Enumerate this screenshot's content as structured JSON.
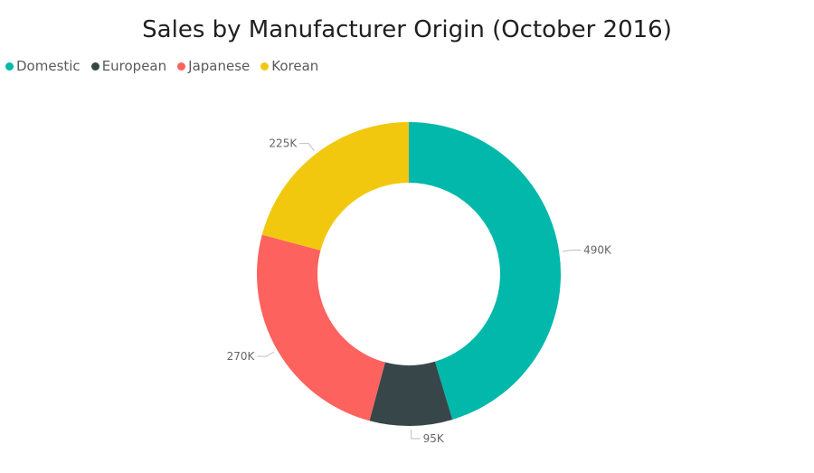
{
  "chart_data": {
    "type": "pie",
    "subtype": "donut",
    "title": "Sales by Manufacturer Origin (October 2016)",
    "legend_position": "top-left",
    "series": [
      {
        "name": "Domestic",
        "value": 490000,
        "label": "490K",
        "color": "#01b8aa"
      },
      {
        "name": "European",
        "value": 95000,
        "label": "95K",
        "color": "#374649"
      },
      {
        "name": "Japanese",
        "value": 270000,
        "label": "270K",
        "color": "#fd625e"
      },
      {
        "name": "Korean",
        "value": 225000,
        "label": "225K",
        "color": "#f2c80f"
      }
    ]
  }
}
